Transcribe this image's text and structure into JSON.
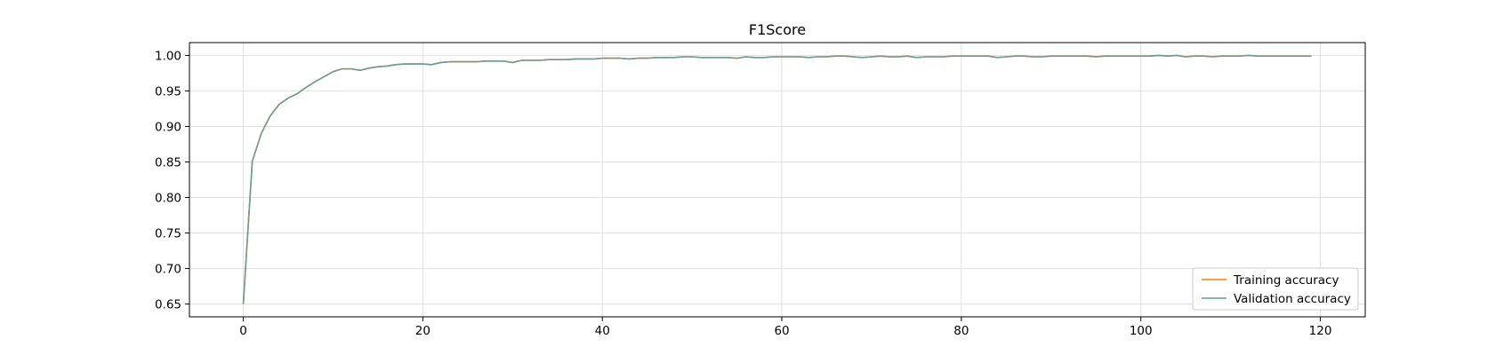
{
  "chart_data": {
    "type": "line",
    "title": "F1Score",
    "xlabel": "",
    "ylabel": "",
    "xlim": [
      -6,
      125
    ],
    "ylim": [
      0.632,
      1.018
    ],
    "xticks": [
      0,
      20,
      40,
      60,
      80,
      100,
      120
    ],
    "xtick_labels": [
      "0",
      "20",
      "40",
      "60",
      "80",
      "100",
      "120"
    ],
    "yticks": [
      0.65,
      0.7,
      0.75,
      0.8,
      0.85,
      0.9,
      0.95,
      1.0
    ],
    "ytick_labels": [
      "0.65",
      "0.70",
      "0.75",
      "0.80",
      "0.85",
      "0.90",
      "0.95",
      "1.00"
    ],
    "grid": true,
    "legend_position": "lower-right",
    "series": [
      {
        "name": "Training accuracy",
        "color": "#ff7f0e",
        "x": [
          0,
          1,
          2,
          3,
          4,
          5,
          6,
          7,
          8,
          9,
          10,
          11,
          12,
          13,
          14,
          15,
          16,
          17,
          18,
          19,
          20,
          21,
          22,
          23,
          24,
          25,
          26,
          27,
          28,
          29,
          30,
          31,
          32,
          33,
          34,
          35,
          36,
          37,
          38,
          39,
          40,
          41,
          42,
          43,
          44,
          45,
          46,
          47,
          48,
          49,
          50,
          51,
          52,
          53,
          54,
          55,
          56,
          57,
          58,
          59,
          60,
          61,
          62,
          63,
          64,
          65,
          66,
          67,
          68,
          69,
          70,
          71,
          72,
          73,
          74,
          75,
          76,
          77,
          78,
          79,
          80,
          81,
          82,
          83,
          84,
          85,
          86,
          87,
          88,
          89,
          90,
          91,
          92,
          93,
          94,
          95,
          96,
          97,
          98,
          99,
          100,
          101,
          102,
          103,
          104,
          105,
          106,
          107,
          108,
          109,
          110,
          111,
          112,
          113,
          114,
          115,
          116,
          117,
          118,
          119
        ],
        "values": [
          0.65,
          0.851,
          0.89,
          0.915,
          0.931,
          0.94,
          0.946,
          0.955,
          0.963,
          0.97,
          0.977,
          0.981,
          0.981,
          0.979,
          0.982,
          0.984,
          0.985,
          0.987,
          0.988,
          0.988,
          0.988,
          0.987,
          0.99,
          0.991,
          0.991,
          0.991,
          0.991,
          0.992,
          0.992,
          0.992,
          0.99,
          0.993,
          0.993,
          0.993,
          0.994,
          0.994,
          0.994,
          0.995,
          0.995,
          0.995,
          0.996,
          0.996,
          0.996,
          0.995,
          0.996,
          0.996,
          0.997,
          0.997,
          0.997,
          0.998,
          0.998,
          0.997,
          0.997,
          0.997,
          0.997,
          0.996,
          0.998,
          0.997,
          0.997,
          0.998,
          0.998,
          0.998,
          0.998,
          0.997,
          0.998,
          0.998,
          0.999,
          0.999,
          0.998,
          0.997,
          0.998,
          0.999,
          0.998,
          0.998,
          0.999,
          0.997,
          0.998,
          0.998,
          0.998,
          0.999,
          0.999,
          0.999,
          0.999,
          0.999,
          0.997,
          0.998,
          0.999,
          0.999,
          0.998,
          0.998,
          0.999,
          0.999,
          0.999,
          0.999,
          0.999,
          0.998,
          0.999,
          0.999,
          0.999,
          0.999,
          0.999,
          0.999,
          1.0,
          0.999,
          1.0,
          0.998,
          0.999,
          0.999,
          0.998,
          0.999,
          0.999,
          0.999,
          1.0,
          0.999,
          0.999,
          0.999,
          0.999,
          0.999,
          0.999,
          0.999
        ]
      },
      {
        "name": "Validation accuracy",
        "color": "#5f9ea0",
        "x": [
          0,
          1,
          2,
          3,
          4,
          5,
          6,
          7,
          8,
          9,
          10,
          11,
          12,
          13,
          14,
          15,
          16,
          17,
          18,
          19,
          20,
          21,
          22,
          23,
          24,
          25,
          26,
          27,
          28,
          29,
          30,
          31,
          32,
          33,
          34,
          35,
          36,
          37,
          38,
          39,
          40,
          41,
          42,
          43,
          44,
          45,
          46,
          47,
          48,
          49,
          50,
          51,
          52,
          53,
          54,
          55,
          56,
          57,
          58,
          59,
          60,
          61,
          62,
          63,
          64,
          65,
          66,
          67,
          68,
          69,
          70,
          71,
          72,
          73,
          74,
          75,
          76,
          77,
          78,
          79,
          80,
          81,
          82,
          83,
          84,
          85,
          86,
          87,
          88,
          89,
          90,
          91,
          92,
          93,
          94,
          95,
          96,
          97,
          98,
          99,
          100,
          101,
          102,
          103,
          104,
          105,
          106,
          107,
          108,
          109,
          110,
          111,
          112,
          113,
          114,
          115,
          116,
          117,
          118,
          119
        ],
        "values": [
          0.65,
          0.851,
          0.89,
          0.915,
          0.931,
          0.94,
          0.946,
          0.955,
          0.963,
          0.97,
          0.977,
          0.981,
          0.981,
          0.979,
          0.982,
          0.984,
          0.985,
          0.987,
          0.988,
          0.988,
          0.988,
          0.987,
          0.99,
          0.991,
          0.991,
          0.991,
          0.991,
          0.992,
          0.992,
          0.992,
          0.99,
          0.993,
          0.993,
          0.993,
          0.994,
          0.994,
          0.994,
          0.995,
          0.995,
          0.995,
          0.996,
          0.996,
          0.996,
          0.995,
          0.996,
          0.996,
          0.997,
          0.997,
          0.997,
          0.998,
          0.998,
          0.997,
          0.997,
          0.997,
          0.997,
          0.996,
          0.998,
          0.997,
          0.997,
          0.998,
          0.998,
          0.998,
          0.998,
          0.997,
          0.998,
          0.998,
          0.999,
          0.999,
          0.998,
          0.997,
          0.998,
          0.999,
          0.998,
          0.998,
          0.999,
          0.997,
          0.998,
          0.998,
          0.998,
          0.999,
          0.999,
          0.999,
          0.999,
          0.999,
          0.997,
          0.998,
          0.999,
          0.999,
          0.998,
          0.998,
          0.999,
          0.999,
          0.999,
          0.999,
          0.999,
          0.998,
          0.999,
          0.999,
          0.999,
          0.999,
          0.999,
          0.999,
          1.0,
          0.999,
          1.0,
          0.998,
          0.999,
          0.999,
          0.998,
          0.999,
          0.999,
          0.999,
          1.0,
          0.999,
          0.999,
          0.999,
          0.999,
          0.999,
          0.999,
          0.999
        ]
      }
    ]
  }
}
